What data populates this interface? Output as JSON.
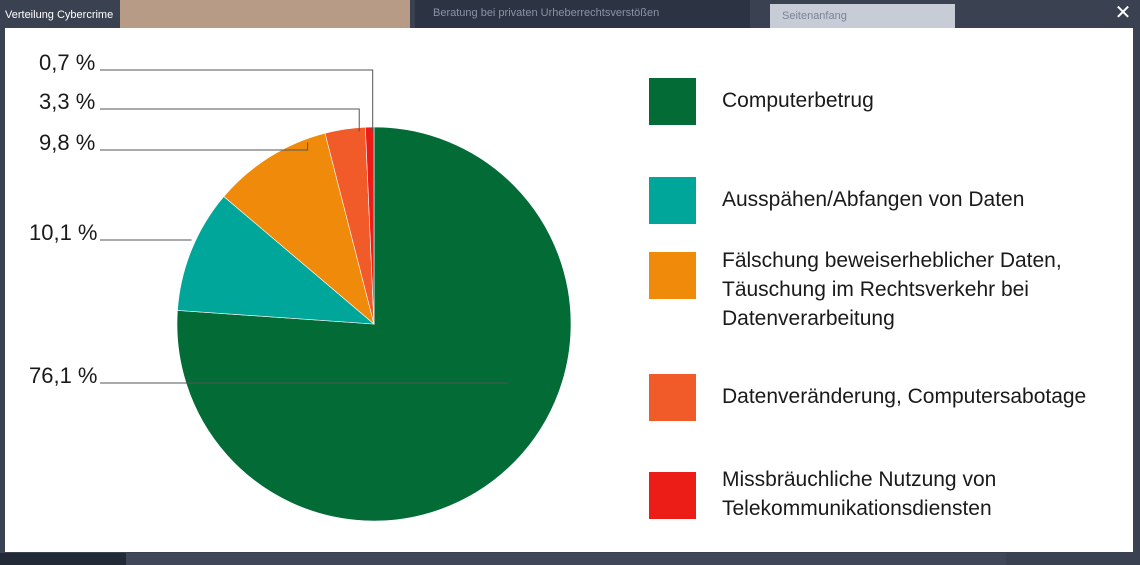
{
  "window": {
    "title": "Verteilung Cybercrime",
    "close_icon": "close-icon"
  },
  "background": {
    "nav_text": "Beratung bei privaten Urheberrechtsverstößen",
    "search_text": "Seitenanfang"
  },
  "chart_data": {
    "type": "pie",
    "slices": [
      {
        "label": "Computerbetrug",
        "value": 76.1,
        "value_label": "76,1 %",
        "color": "#036b36"
      },
      {
        "label": "Ausspähen/Abfangen von Daten",
        "value": 10.1,
        "value_label": "10,1 %",
        "color": "#00a699"
      },
      {
        "label": "Fälschung beweiserheblicher Daten,\nTäuschung im Rechtsverkehr bei\nDatenverarbeitung",
        "value": 9.8,
        "value_label": "9,8 %",
        "color": "#f08a0a"
      },
      {
        "label": "Datenveränderung, Computersabotage",
        "value": 3.3,
        "value_label": "3,3 %",
        "color": "#f15a29"
      },
      {
        "label": "Missbräuchliche Nutzung von\nTelekommunikationsdiensten",
        "value": 0.7,
        "value_label": "0,7 %",
        "color": "#ec1c17"
      }
    ],
    "legend_position": "right",
    "start_angle_deg": 0,
    "direction": "clockwise"
  }
}
